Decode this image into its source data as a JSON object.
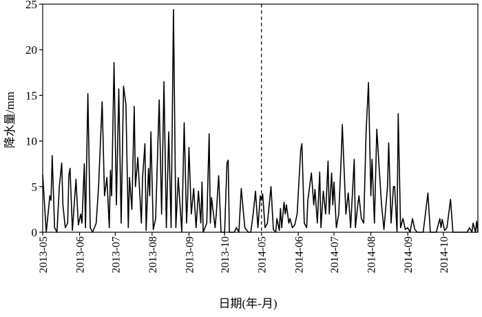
{
  "chart_data": {
    "type": "line",
    "x_label": "日期(年-月)",
    "y_label": "降水量/mm",
    "x": [
      0,
      3,
      6,
      7,
      8,
      10,
      12,
      14,
      16,
      17,
      19,
      21,
      22,
      23,
      25,
      28,
      30,
      32,
      33,
      35,
      36,
      38,
      40,
      42,
      45,
      47,
      50,
      52,
      54,
      56,
      57,
      58,
      60,
      62,
      64,
      66,
      68,
      70,
      72,
      73,
      75,
      77,
      78,
      80,
      83,
      84,
      86,
      87,
      89,
      90,
      91,
      93,
      95,
      98,
      100,
      102,
      104,
      106,
      108,
      110,
      112,
      114,
      116,
      117,
      119,
      121,
      122,
      123,
      125,
      127,
      129,
      131,
      133,
      134,
      135,
      138,
      140,
      141,
      142,
      145,
      146,
      148,
      150,
      153,
      155,
      156,
      157,
      161,
      163,
      165,
      167,
      170,
      173,
      175,
      177,
      179,
      181,
      183,
      184,
      185,
      187,
      189,
      192,
      194,
      196,
      197,
      199,
      200,
      201,
      203,
      204,
      205,
      207,
      208,
      210,
      212,
      214,
      217,
      218,
      220,
      222,
      223,
      226,
      228,
      229,
      231,
      233,
      234,
      236,
      238,
      240,
      241,
      243,
      244,
      245,
      247,
      249,
      251,
      252,
      255,
      257,
      259,
      262,
      263,
      265,
      266,
      268,
      270,
      272,
      274,
      276,
      277,
      279,
      281,
      283,
      285,
      287,
      290,
      291,
      293,
      295,
      296,
      298,
      299,
      301,
      303,
      305,
      307,
      309,
      311,
      313,
      315,
      320,
      324,
      326,
      331,
      332,
      334,
      335,
      336,
      338,
      340,
      343,
      345,
      357,
      359,
      361,
      362,
      364,
      365,
      366
    ],
    "values": [
      6.3,
      0,
      4,
      3.5,
      8.4,
      0.5,
      0,
      5,
      7.6,
      3,
      0.5,
      1,
      6.2,
      7,
      0.2,
      5.8,
      0.8,
      2,
      1,
      7.5,
      0.5,
      15.2,
      0.5,
      0,
      1,
      5,
      14.3,
      4,
      6,
      0.5,
      6.8,
      4,
      18.6,
      3,
      15.7,
      1,
      16,
      14,
      0.5,
      6,
      2.5,
      13.8,
      5,
      8.2,
      1,
      6,
      9.7,
      0.2,
      7,
      4,
      11,
      0.3,
      1.5,
      14.5,
      2,
      16.5,
      0.5,
      11,
      0.5,
      24.4,
      0.5,
      6,
      2,
      0,
      12,
      1,
      4,
      9.3,
      2,
      4.8,
      0.5,
      4.5,
      1,
      5.5,
      0,
      1,
      10.8,
      1,
      3.8,
      0.5,
      2,
      6.2,
      0,
      0,
      7.6,
      7.9,
      0,
      0,
      0.5,
      0,
      4.8,
      0.5,
      0,
      0,
      2,
      4.5,
      0.5,
      4,
      3.5,
      4.2,
      0.5,
      1,
      5,
      0.3,
      0,
      1.5,
      0.2,
      2.6,
      0.5,
      3.3,
      2,
      3,
      1,
      1.5,
      0.5,
      0.8,
      2,
      9,
      9.7,
      1,
      0.5,
      3.5,
      6.5,
      3,
      4.7,
      1,
      6.6,
      0.5,
      4.5,
      2,
      7.8,
      2,
      6.5,
      3,
      5.5,
      0.5,
      2,
      8,
      11.8,
      2,
      4.3,
      0.5,
      8,
      0.5,
      3,
      4,
      1.5,
      1,
      11,
      16.4,
      4,
      8,
      1,
      11.3,
      7,
      3,
      0.3,
      5,
      9.8,
      1,
      5,
      5,
      0,
      13,
      0.5,
      1.5,
      0.3,
      0.5,
      0,
      1.5,
      0.3,
      0,
      0,
      4.3,
      0,
      0,
      0.5,
      1.5,
      0.5,
      1.4,
      0.2,
      0.5,
      3.6,
      0,
      0,
      0.5,
      0,
      1,
      0,
      1.2,
      0
    ],
    "color": "#000000",
    "xlim": [
      0,
      366
    ],
    "xticks": [
      {
        "value": 0,
        "label": "2013-05"
      },
      {
        "value": 31,
        "label": "2013-06"
      },
      {
        "value": 61,
        "label": "2013-07"
      },
      {
        "value": 92,
        "label": "2013-08"
      },
      {
        "value": 123,
        "label": "2013-09"
      },
      {
        "value": 153,
        "label": "2013-10"
      },
      {
        "value": 184,
        "label": "2014-05"
      },
      {
        "value": 215,
        "label": "2014-06"
      },
      {
        "value": 245,
        "label": "2014-07"
      },
      {
        "value": 276,
        "label": "2014-08"
      },
      {
        "value": 307,
        "label": "2014-09"
      },
      {
        "value": 337,
        "label": "2014-10"
      }
    ],
    "ylim": [
      0,
      25
    ],
    "yticks": [
      0,
      5,
      10,
      15,
      20,
      25
    ],
    "vline": 184
  }
}
